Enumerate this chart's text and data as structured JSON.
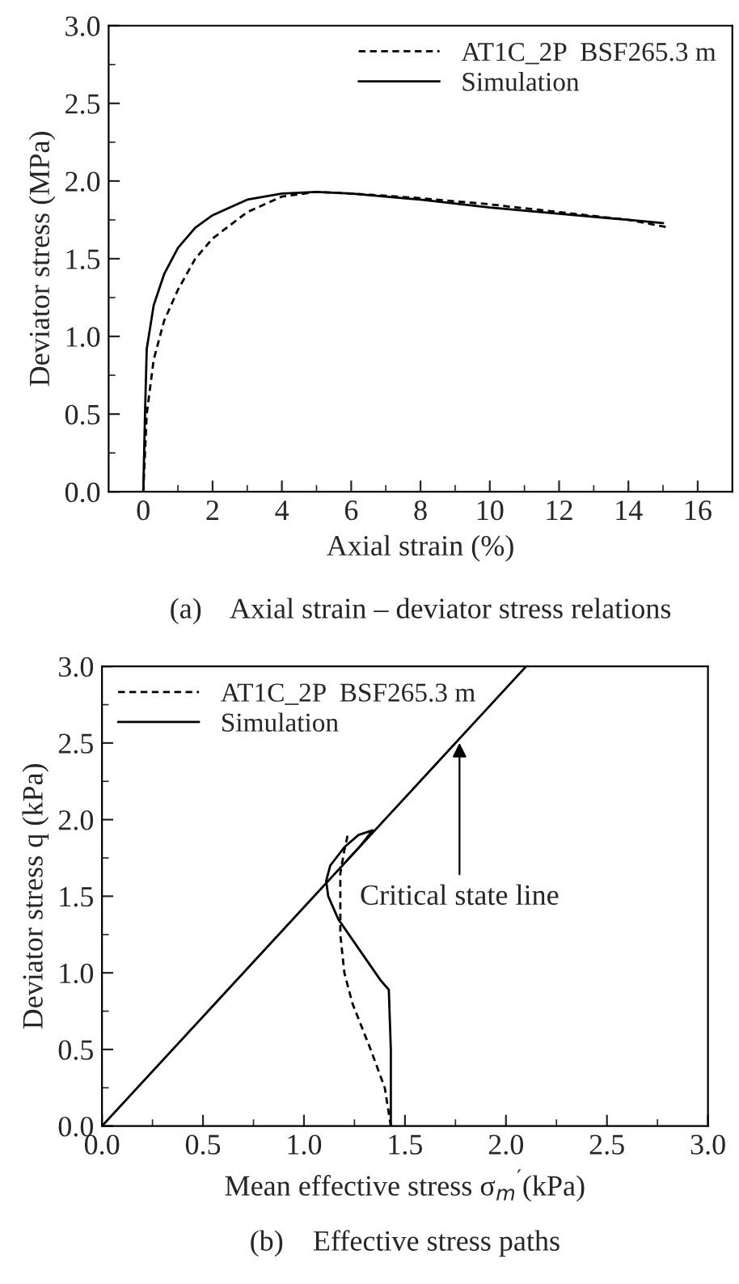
{
  "chart_data": [
    {
      "type": "line",
      "title": "(a)    Axial strain – deviator stress relations",
      "xlabel": "Axial strain (%)",
      "ylabel": "Deviator stress (MPa)",
      "xlim": [
        -1,
        17
      ],
      "xticks": [
        0,
        {
          "value": 1,
          "label": null
        },
        2,
        {
          "value": 3,
          "label": null
        },
        4,
        {
          "value": 5,
          "label": null
        },
        6,
        {
          "value": 7,
          "label": null
        },
        8,
        {
          "value": 9,
          "label": null
        },
        10,
        {
          "value": 11,
          "label": null
        },
        12,
        {
          "value": 13,
          "label": null
        },
        14,
        {
          "value": 15,
          "label": null
        },
        16
      ],
      "ylim": [
        0,
        3
      ],
      "yticks": [
        {
          "value": 0,
          "label": "0.0"
        },
        {
          "value": 0.25,
          "label": null
        },
        0.5,
        {
          "value": 0.75,
          "label": null
        },
        {
          "value": 1,
          "label": "1.0"
        },
        {
          "value": 1.25,
          "label": null
        },
        1.5,
        {
          "value": 1.75,
          "label": null
        },
        {
          "value": 2,
          "label": "2.0"
        },
        {
          "value": 2.25,
          "label": null
        },
        2.5,
        {
          "value": 2.75,
          "label": null
        },
        {
          "value": 3,
          "label": "3.0"
        }
      ],
      "legend": "top right",
      "grid": false,
      "series": [
        {
          "name": "AT1C_2P  BSF265.3 m",
          "color": "#000000",
          "line_style": "dashed",
          "x": [
            0,
            0.1,
            0.3,
            0.6,
            1,
            1.5,
            2,
            3,
            4,
            5,
            6,
            8,
            10,
            12,
            14,
            15.2
          ],
          "values": [
            0,
            0.5,
            0.85,
            1.1,
            1.3,
            1.5,
            1.63,
            1.8,
            1.9,
            1.93,
            1.92,
            1.89,
            1.85,
            1.8,
            1.75,
            1.7
          ]
        },
        {
          "name": "Simulation",
          "color": "#000000",
          "line_style": "solid",
          "x": [
            0,
            0.05,
            0.1,
            0.3,
            0.6,
            1,
            1.5,
            2,
            3,
            4,
            5,
            6,
            8,
            10,
            12,
            14,
            15
          ],
          "values": [
            0,
            0.5,
            0.92,
            1.2,
            1.4,
            1.57,
            1.7,
            1.78,
            1.88,
            1.92,
            1.93,
            1.92,
            1.88,
            1.83,
            1.79,
            1.75,
            1.73
          ]
        }
      ]
    },
    {
      "type": "line",
      "title": "(b)    Effective stress paths",
      "xlabel": "Mean effective stress σ$_{m}$$^{′}$(kPa)",
      "ylabel": "Deviator stress q (kPa)",
      "xlim": [
        0,
        3
      ],
      "xticks": [
        {
          "value": 0,
          "label": "0.0"
        },
        {
          "value": 0.25,
          "label": null
        },
        0.5,
        {
          "value": 0.75,
          "label": null
        },
        {
          "value": 1,
          "label": "1.0"
        },
        {
          "value": 1.25,
          "label": null
        },
        1.5,
        {
          "value": 1.75,
          "label": null
        },
        {
          "value": 2,
          "label": "2.0"
        },
        {
          "value": 2.25,
          "label": null
        },
        2.5,
        {
          "value": 2.75,
          "label": null
        },
        {
          "value": 3,
          "label": "3.0"
        }
      ],
      "ylim": [
        0,
        3
      ],
      "yticks": [
        {
          "value": 0,
          "label": "0.0"
        },
        {
          "value": 0.25,
          "label": null
        },
        0.5,
        {
          "value": 0.75,
          "label": null
        },
        {
          "value": 1,
          "label": "1.0"
        },
        {
          "value": 1.25,
          "label": null
        },
        1.5,
        {
          "value": 1.75,
          "label": null
        },
        {
          "value": 2,
          "label": "2.0"
        },
        {
          "value": 2.25,
          "label": null
        },
        2.5,
        {
          "value": 2.75,
          "label": null
        },
        {
          "value": 3,
          "label": "3.0"
        }
      ],
      "legend": "top left",
      "grid": false,
      "annotations": [
        {
          "text": "Critical state line",
          "x": 1.77,
          "y": 2.53
        }
      ],
      "series": [
        {
          "name": "AT1C_2P  BSF265.3 m",
          "color": "#000000",
          "line_style": "dashed",
          "x": [
            1.43,
            1.4,
            1.33,
            1.24,
            1.2,
            1.18,
            1.18,
            1.18,
            1.2,
            1.22
          ],
          "values": [
            0,
            0.25,
            0.5,
            0.8,
            1.0,
            1.25,
            1.5,
            1.65,
            1.8,
            1.92
          ]
        },
        {
          "name": "Simulation",
          "color": "#000000",
          "line_style": "solid",
          "x": [
            1.43,
            1.43,
            1.42,
            1.38,
            1.17,
            1.12,
            1.11,
            1.13,
            1.2,
            1.27,
            1.34,
            1.28,
            1.21
          ],
          "values": [
            0,
            0.5,
            0.89,
            0.95,
            1.35,
            1.5,
            1.6,
            1.7,
            1.82,
            1.9,
            1.93,
            1.83,
            1.73
          ]
        },
        {
          "color": "#000000",
          "line_style": "solid",
          "x": [
            0,
            2.1
          ],
          "values": [
            0,
            3.0
          ]
        }
      ]
    }
  ]
}
